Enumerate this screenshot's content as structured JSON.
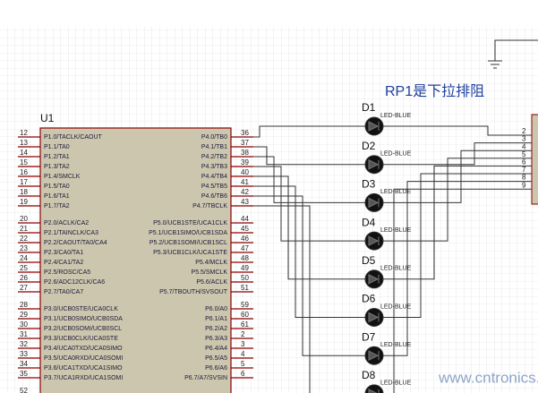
{
  "annotation": "RP1是下拉排阻",
  "watermark": "www.cntronics.com",
  "chip": {
    "label": "U1",
    "left_pins": [
      {
        "num": "12",
        "name": "P1.0/TACLK/CAOUT"
      },
      {
        "num": "13",
        "name": "P1.1/TA0"
      },
      {
        "num": "14",
        "name": "P1.2/TA1"
      },
      {
        "num": "15",
        "name": "P1.3/TA2"
      },
      {
        "num": "16",
        "name": "P1.4/SMCLK"
      },
      {
        "num": "17",
        "name": "P1.5/TA0"
      },
      {
        "num": "18",
        "name": "P1.6/TA1"
      },
      {
        "num": "19",
        "name": "P1.7/TA2"
      },
      {
        "num": "20",
        "name": "P2.0/ACLK/CA2"
      },
      {
        "num": "21",
        "name": "P2.1/TAINCLK/CA3"
      },
      {
        "num": "22",
        "name": "P2.2/CAOUT/TA0/CA4"
      },
      {
        "num": "23",
        "name": "P2.3/CA0/TA1"
      },
      {
        "num": "24",
        "name": "P2.4/CA1/TA2"
      },
      {
        "num": "25",
        "name": "P2.5/ROSC/CA5"
      },
      {
        "num": "26",
        "name": "P2.6/ADC12CLK/CA6"
      },
      {
        "num": "27",
        "name": "P2.7/TA0/CA7"
      },
      {
        "num": "28",
        "name": "P3.0/UCB0STE/UCA0CLK"
      },
      {
        "num": "29",
        "name": "P3.1/UCB0SIMO/UCB0SDA"
      },
      {
        "num": "30",
        "name": "P3.2/UCB0SOMI/UCB0SCL"
      },
      {
        "num": "31",
        "name": "P3.3/UCB0CLK/UCA0STE"
      },
      {
        "num": "32",
        "name": "P3.4/UCA0TXD/UCA0SIMO"
      },
      {
        "num": "33",
        "name": "P3.5/UCA0RXD/UCA0SOMI"
      },
      {
        "num": "34",
        "name": "P3.6/UCA1TXD/UCA1SIMO"
      },
      {
        "num": "35",
        "name": "P3.7/UCA1RXD/UCA1SOMI"
      }
    ],
    "right_pins": [
      {
        "num": "36",
        "name": "P4.0/TB0"
      },
      {
        "num": "37",
        "name": "P4.1/TB1"
      },
      {
        "num": "38",
        "name": "P4.2/TB2"
      },
      {
        "num": "39",
        "name": "P4.3/TB3"
      },
      {
        "num": "40",
        "name": "P4.4/TB4"
      },
      {
        "num": "41",
        "name": "P4.5/TB5"
      },
      {
        "num": "42",
        "name": "P4.6/TB6"
      },
      {
        "num": "43",
        "name": "P4.7/TBCLK"
      },
      {
        "num": "44",
        "name": "P5.0/UCB1STE/UCA1CLK"
      },
      {
        "num": "45",
        "name": "P5.1/UCB1SIMO/UCB1SDA"
      },
      {
        "num": "46",
        "name": "P5.2/UCB1SOMI/UCB1SCL"
      },
      {
        "num": "47",
        "name": "P5.3/UCB1CLK/UCA1STE"
      },
      {
        "num": "48",
        "name": "P5.4/MCLK"
      },
      {
        "num": "49",
        "name": "P5.5/SMCLK"
      },
      {
        "num": "50",
        "name": "P5.6/ACLK"
      },
      {
        "num": "51",
        "name": "P5.7/TBOUTH/SVSOUT"
      },
      {
        "num": "59",
        "name": "P6.0/A0"
      },
      {
        "num": "60",
        "name": "P6.1/A1"
      },
      {
        "num": "61",
        "name": "P6.2/A2"
      },
      {
        "num": "2",
        "name": "P6.3/A3"
      },
      {
        "num": "3",
        "name": "P6.4/A4"
      },
      {
        "num": "4",
        "name": "P6.5/A5"
      },
      {
        "num": "5",
        "name": "P6.6/A6"
      },
      {
        "num": "6",
        "name": "P6.7/A7/SVSIN"
      }
    ],
    "bottom_pin": "52"
  },
  "leds": [
    {
      "label": "D1",
      "type": "LED-BLUE"
    },
    {
      "label": "D2",
      "type": "LED-BLUE"
    },
    {
      "label": "D3",
      "type": "LED-BLUE"
    },
    {
      "label": "D4",
      "type": "LED-BLUE"
    },
    {
      "label": "D5",
      "type": "LED-BLUE"
    },
    {
      "label": "D6",
      "type": "LED-BLUE"
    },
    {
      "label": "D7",
      "type": "LED-BLUE"
    },
    {
      "label": "D8",
      "type": "LED-BLUE"
    }
  ],
  "resistor_pins": [
    "2",
    "3",
    "4",
    "5",
    "6",
    "7",
    "8",
    "9"
  ]
}
